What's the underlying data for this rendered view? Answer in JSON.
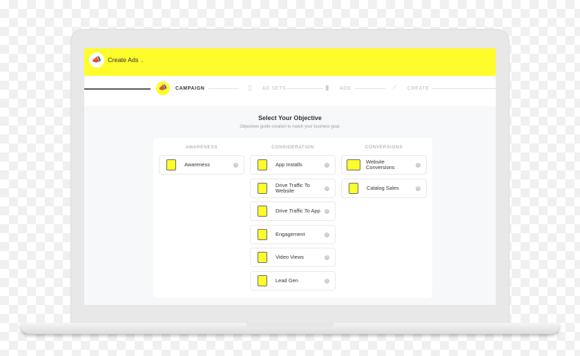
{
  "header": {
    "title": "Create Ads",
    "logo_icon": "megaphone-icon",
    "accent": "#fffc2c"
  },
  "steps": [
    {
      "label": "CAMPAIGN",
      "icon": "megaphone-icon",
      "active": true
    },
    {
      "label": "AD SETS",
      "icon": "phone-stack-icon",
      "active": false
    },
    {
      "label": "ADS",
      "icon": "phone-icon",
      "active": false
    },
    {
      "label": "CREATE",
      "icon": "magic-wand-icon",
      "active": false
    }
  ],
  "main": {
    "heading": "Select Your Objective",
    "subheading": "Objectives guide creation to match your business goal."
  },
  "columns": [
    {
      "title": "AWARENESS",
      "items": [
        {
          "label": "Awareness",
          "icon": "siren-icon"
        }
      ]
    },
    {
      "title": "CONSIDERATION",
      "items": [
        {
          "label": "App Installs",
          "icon": "phone-download-icon"
        },
        {
          "label": "Drive Traffic To Website",
          "icon": "phone-web-icon"
        },
        {
          "label": "Drive Traffic To App",
          "icon": "phone-app-icon"
        },
        {
          "label": "Engagement",
          "icon": "ghost-chat-icon"
        },
        {
          "label": "Video Views",
          "icon": "phone-video-icon"
        },
        {
          "label": "Lead Gen",
          "icon": "magnifier-icon"
        }
      ]
    },
    {
      "title": "CONVERSIONS",
      "items": [
        {
          "label": "Website Conversions",
          "icon": "monitor-cart-icon"
        },
        {
          "label": "Catalog Sales",
          "icon": "phone-catalog-icon"
        }
      ]
    }
  ]
}
